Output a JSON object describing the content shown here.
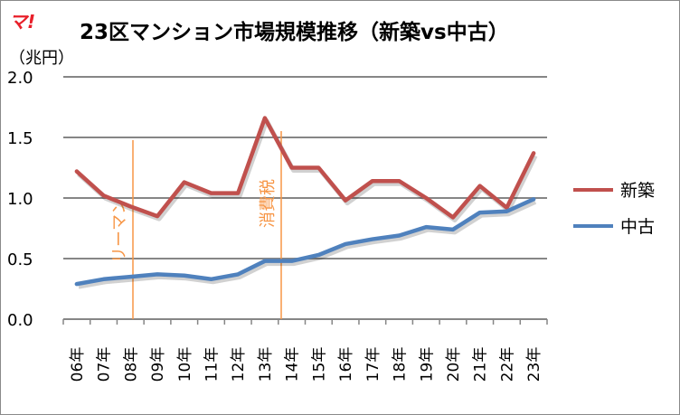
{
  "logo": "マ!",
  "chart_data": {
    "type": "line",
    "title": "23区マンション市場規模推移（新築vs中古）",
    "ylabel": "（兆円）",
    "xlabel": "",
    "ylim": [
      0,
      2.0
    ],
    "yticks": [
      "0.0",
      "0.5",
      "1.0",
      "1.5",
      "2.0"
    ],
    "grid": true,
    "legend_position": "right",
    "categories": [
      "06年",
      "07年",
      "08年",
      "09年",
      "10年",
      "11年",
      "12年",
      "13年",
      "14年",
      "15年",
      "16年",
      "17年",
      "18年",
      "19年",
      "20年",
      "21年",
      "22年",
      "23年"
    ],
    "series": [
      {
        "name": "新築",
        "color": "#c0504d",
        "values": [
          1.22,
          1.02,
          0.93,
          0.85,
          1.13,
          1.04,
          1.04,
          1.66,
          1.25,
          1.25,
          0.98,
          1.14,
          1.14,
          1.0,
          0.84,
          1.1,
          0.92,
          1.37
        ]
      },
      {
        "name": "中古",
        "color": "#4f81bd",
        "values": [
          0.29,
          0.33,
          0.35,
          0.37,
          0.36,
          0.33,
          0.37,
          0.48,
          0.48,
          0.53,
          0.62,
          0.66,
          0.69,
          0.76,
          0.74,
          0.88,
          0.89,
          0.99
        ]
      }
    ],
    "annotations": [
      {
        "label": "リーマン",
        "color": "#f79646"
      },
      {
        "label": "消費税",
        "color": "#f79646"
      }
    ]
  }
}
